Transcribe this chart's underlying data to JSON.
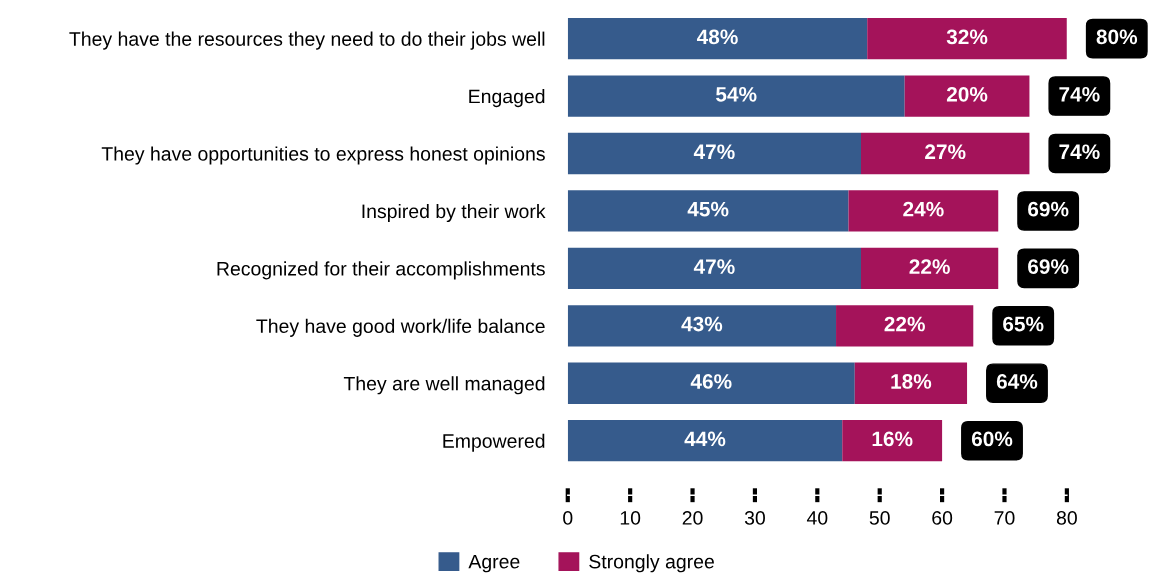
{
  "chart_data": {
    "type": "bar",
    "orientation": "horizontal",
    "stacked": true,
    "categories": [
      "They have the resources they need to do their jobs well",
      "Engaged",
      "They have opportunities to express honest opinions",
      "Inspired by their work",
      "Recognized for their accomplishments",
      "They have good work/life balance",
      "They are well managed",
      "Empowered"
    ],
    "series": [
      {
        "name": "Agree",
        "color": "#365b8c",
        "values": [
          48,
          54,
          47,
          45,
          47,
          43,
          46,
          44
        ],
        "value_labels": [
          "48%",
          "54%",
          "47%",
          "45%",
          "47%",
          "43%",
          "46%",
          "44%"
        ]
      },
      {
        "name": "Strongly agree",
        "color": "#a4135a",
        "values": [
          32,
          20,
          27,
          24,
          22,
          22,
          18,
          16
        ],
        "value_labels": [
          "32%",
          "20%",
          "27%",
          "24%",
          "22%",
          "22%",
          "18%",
          "16%"
        ]
      }
    ],
    "totals": [
      "80%",
      "74%",
      "74%",
      "69%",
      "69%",
      "65%",
      "64%",
      "60%"
    ],
    "xlim": [
      0,
      80
    ],
    "xticks": [
      0,
      10,
      20,
      30,
      40,
      50,
      60,
      70,
      80
    ],
    "grid": false,
    "legend": "bottom"
  }
}
